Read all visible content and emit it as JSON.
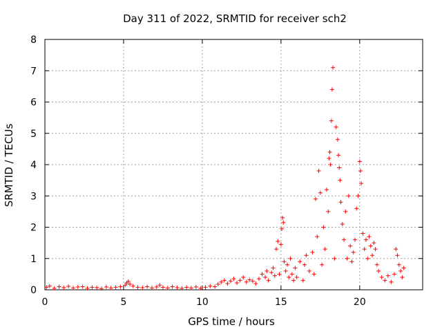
{
  "chart_data": {
    "type": "scatter",
    "title": "Day 311 of 2022, SRMTID for receiver sch2",
    "xlabel": "GPS time / hours",
    "ylabel": "SRMTID / TECUs",
    "xlim": [
      0,
      24
    ],
    "ylim": [
      0,
      8
    ],
    "xticks": [
      0,
      5,
      10,
      15,
      20
    ],
    "yticks": [
      0,
      1,
      2,
      3,
      4,
      5,
      6,
      7,
      8
    ],
    "grid": true,
    "marker": "+",
    "color": "#ff0000",
    "series": [
      {
        "name": "SRMTID",
        "points": [
          [
            0.1,
            0.08
          ],
          [
            0.3,
            0.12
          ],
          [
            0.6,
            0.05
          ],
          [
            0.9,
            0.1
          ],
          [
            1.2,
            0.07
          ],
          [
            1.5,
            0.11
          ],
          [
            1.8,
            0.06
          ],
          [
            2.1,
            0.09
          ],
          [
            2.4,
            0.1
          ],
          [
            2.7,
            0.05
          ],
          [
            3.0,
            0.08
          ],
          [
            3.3,
            0.07
          ],
          [
            3.6,
            0.04
          ],
          [
            3.9,
            0.09
          ],
          [
            4.2,
            0.06
          ],
          [
            4.5,
            0.08
          ],
          [
            4.8,
            0.1
          ],
          [
            5.1,
            0.15
          ],
          [
            5.2,
            0.22
          ],
          [
            5.3,
            0.27
          ],
          [
            5.4,
            0.18
          ],
          [
            5.6,
            0.12
          ],
          [
            5.9,
            0.08
          ],
          [
            6.2,
            0.07
          ],
          [
            6.5,
            0.1
          ],
          [
            6.8,
            0.06
          ],
          [
            7.1,
            0.09
          ],
          [
            7.3,
            0.15
          ],
          [
            7.5,
            0.08
          ],
          [
            7.8,
            0.06
          ],
          [
            8.1,
            0.1
          ],
          [
            8.4,
            0.07
          ],
          [
            8.7,
            0.05
          ],
          [
            9.0,
            0.08
          ],
          [
            9.3,
            0.06
          ],
          [
            9.6,
            0.09
          ],
          [
            9.9,
            0.05
          ],
          [
            10.2,
            0.08
          ],
          [
            10.5,
            0.12
          ],
          [
            10.8,
            0.1
          ],
          [
            11.0,
            0.18
          ],
          [
            11.2,
            0.25
          ],
          [
            11.4,
            0.3
          ],
          [
            11.6,
            0.2
          ],
          [
            11.8,
            0.28
          ],
          [
            12.0,
            0.35
          ],
          [
            12.2,
            0.22
          ],
          [
            12.4,
            0.3
          ],
          [
            12.6,
            0.4
          ],
          [
            12.8,
            0.25
          ],
          [
            13.0,
            0.32
          ],
          [
            13.2,
            0.28
          ],
          [
            13.4,
            0.2
          ],
          [
            13.6,
            0.35
          ],
          [
            13.8,
            0.5
          ],
          [
            14.0,
            0.4
          ],
          [
            14.1,
            0.6
          ],
          [
            14.2,
            0.3
          ],
          [
            14.4,
            0.55
          ],
          [
            14.5,
            0.7
          ],
          [
            14.6,
            0.45
          ],
          [
            14.7,
            1.3
          ],
          [
            14.8,
            1.55
          ],
          [
            14.9,
            0.5
          ],
          [
            15.0,
            1.45
          ],
          [
            15.05,
            1.95
          ],
          [
            15.1,
            2.3
          ],
          [
            15.15,
            2.15
          ],
          [
            15.2,
            0.9
          ],
          [
            15.3,
            0.6
          ],
          [
            15.4,
            0.8
          ],
          [
            15.5,
            0.4
          ],
          [
            15.6,
            1.0
          ],
          [
            15.7,
            0.5
          ],
          [
            15.8,
            0.3
          ],
          [
            15.9,
            0.7
          ],
          [
            16.0,
            0.4
          ],
          [
            16.2,
            0.9
          ],
          [
            16.4,
            0.3
          ],
          [
            16.5,
            0.8
          ],
          [
            16.6,
            1.1
          ],
          [
            16.8,
            0.6
          ],
          [
            17.0,
            1.2
          ],
          [
            17.1,
            0.5
          ],
          [
            17.2,
            2.9
          ],
          [
            17.3,
            1.7
          ],
          [
            17.4,
            3.8
          ],
          [
            17.5,
            3.1
          ],
          [
            17.6,
            0.8
          ],
          [
            17.7,
            2.0
          ],
          [
            17.8,
            1.3
          ],
          [
            17.9,
            3.2
          ],
          [
            18.0,
            2.5
          ],
          [
            18.05,
            4.2
          ],
          [
            18.1,
            4.4
          ],
          [
            18.15,
            4.0
          ],
          [
            18.2,
            5.4
          ],
          [
            18.25,
            6.4
          ],
          [
            18.3,
            7.1
          ],
          [
            18.4,
            1.0
          ],
          [
            18.5,
            5.2
          ],
          [
            18.6,
            4.8
          ],
          [
            18.65,
            4.3
          ],
          [
            18.7,
            3.9
          ],
          [
            18.75,
            3.5
          ],
          [
            18.8,
            2.8
          ],
          [
            18.9,
            2.1
          ],
          [
            19.0,
            1.6
          ],
          [
            19.1,
            2.5
          ],
          [
            19.2,
            1.0
          ],
          [
            19.3,
            3.0
          ],
          [
            19.4,
            1.4
          ],
          [
            19.5,
            0.9
          ],
          [
            19.6,
            1.2
          ],
          [
            19.7,
            1.6
          ],
          [
            19.8,
            2.6
          ],
          [
            19.9,
            3.0
          ],
          [
            20.0,
            4.1
          ],
          [
            20.05,
            3.8
          ],
          [
            20.1,
            3.4
          ],
          [
            20.2,
            1.8
          ],
          [
            20.3,
            1.3
          ],
          [
            20.4,
            1.6
          ],
          [
            20.5,
            1.0
          ],
          [
            20.6,
            1.7
          ],
          [
            20.7,
            1.4
          ],
          [
            20.8,
            1.1
          ],
          [
            20.9,
            1.5
          ],
          [
            21.0,
            1.3
          ],
          [
            21.1,
            0.8
          ],
          [
            21.2,
            0.6
          ],
          [
            21.4,
            0.4
          ],
          [
            21.6,
            0.3
          ],
          [
            21.8,
            0.45
          ],
          [
            22.0,
            0.25
          ],
          [
            22.2,
            0.5
          ],
          [
            22.3,
            1.3
          ],
          [
            22.4,
            1.1
          ],
          [
            22.5,
            0.8
          ],
          [
            22.6,
            0.6
          ],
          [
            22.7,
            0.4
          ],
          [
            22.8,
            0.7
          ]
        ]
      }
    ]
  }
}
